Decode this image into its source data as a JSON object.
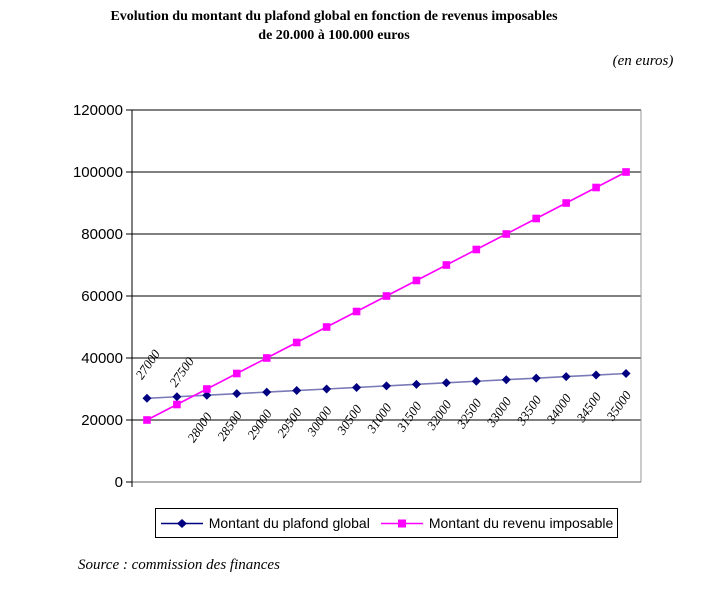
{
  "page": {
    "title_line1": "Evolution du montant du plafond global en fonction de revenus imposables",
    "title_line2": "de 20.000 à 100.000 euros",
    "unit_note": "(en euros)",
    "source_note": "Source : commission des finances"
  },
  "chart_data": {
    "type": "line",
    "title": "Evolution du montant du plafond global en fonction de revenus imposables de 20.000 à 100.000 euros",
    "unit": "euros",
    "categories": [
      "27000",
      "27500",
      "28000",
      "28500",
      "29000",
      "29500",
      "30000",
      "30500",
      "31000",
      "31500",
      "32000",
      "32500",
      "33000",
      "33500",
      "34000",
      "34500",
      "35000"
    ],
    "series": [
      {
        "name": "Montant du plafond global",
        "marker": "diamond",
        "marker_color": "#000080",
        "line_color": "#7a7ab8",
        "show_point_labels": true,
        "values": [
          27000,
          27500,
          28000,
          28500,
          29000,
          29500,
          30000,
          30500,
          31000,
          31500,
          32000,
          32500,
          33000,
          33500,
          34000,
          34500,
          35000
        ]
      },
      {
        "name": "Montant du revenu imposable",
        "marker": "square",
        "marker_color": "#ff00ff",
        "line_color": "#ff00ff",
        "show_point_labels": false,
        "values": [
          20000,
          25000,
          30000,
          35000,
          40000,
          45000,
          50000,
          55000,
          60000,
          65000,
          70000,
          75000,
          80000,
          85000,
          90000,
          95000,
          100000
        ]
      }
    ],
    "ylim": [
      0,
      120000
    ],
    "ytick_interval": 20000,
    "ytick_labels": [
      "0",
      "20000",
      "40000",
      "60000",
      "80000",
      "100000",
      "120000"
    ],
    "grid": true,
    "legend_position": "bottom",
    "point_label_rotation_deg": -55,
    "colors": {
      "grid": "#000000",
      "plot_border": "#999999",
      "axis": "#000000",
      "bottom_axis": "#666666"
    }
  }
}
